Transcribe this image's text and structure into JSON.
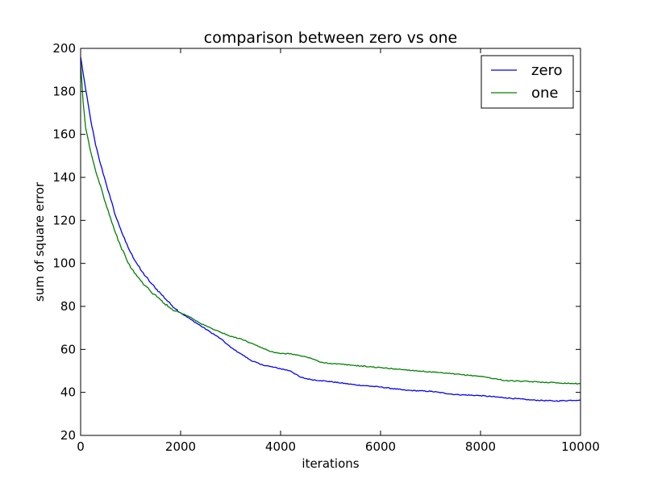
{
  "chart_data": {
    "type": "line",
    "title": "comparison between zero vs one",
    "xlabel": "iterations",
    "ylabel": "sum of square error",
    "xlim": [
      0,
      10000
    ],
    "ylim": [
      20,
      200
    ],
    "xticks": [
      0,
      2000,
      4000,
      6000,
      8000,
      10000
    ],
    "yticks": [
      20,
      40,
      60,
      80,
      100,
      120,
      140,
      160,
      180,
      200
    ],
    "grid": false,
    "legend_position": "top-right",
    "series": [
      {
        "name": "zero",
        "color": "#0000ff",
        "x": [
          0,
          100,
          200,
          300,
          400,
          500,
          600,
          700,
          800,
          900,
          1000,
          1200,
          1400,
          1600,
          1800,
          2000,
          2200,
          2400,
          2600,
          2800,
          3000,
          3200,
          3400,
          3600,
          3800,
          4000,
          4200,
          4400,
          4600,
          4800,
          5000,
          5500,
          6000,
          6500,
          7000,
          7500,
          8000,
          8500,
          9000,
          9500,
          10000
        ],
        "values": [
          196,
          181,
          167,
          155,
          146,
          138,
          130,
          122,
          116,
          110,
          105,
          97,
          91,
          86,
          81,
          77,
          74,
          71,
          68,
          65,
          61,
          58,
          55,
          53,
          52,
          51,
          50,
          47,
          46,
          45.5,
          45,
          43.5,
          42.5,
          41,
          40.5,
          39,
          38.5,
          37.5,
          36.5,
          36,
          36.5
        ]
      },
      {
        "name": "one",
        "color": "#008000",
        "x": [
          0,
          50,
          100,
          200,
          300,
          400,
          500,
          600,
          700,
          800,
          900,
          1000,
          1200,
          1400,
          1600,
          1800,
          2000,
          2200,
          2400,
          2600,
          2800,
          3000,
          3200,
          3400,
          3600,
          3800,
          4000,
          4200,
          4400,
          4600,
          4800,
          5000,
          5500,
          6000,
          6500,
          7000,
          7500,
          8000,
          8500,
          9000,
          9500,
          10000
        ],
        "values": [
          193,
          175,
          163,
          152,
          143,
          136,
          128,
          121,
          114,
          108,
          103,
          98,
          92,
          87,
          83,
          79,
          77,
          75,
          72,
          70,
          68,
          66,
          65,
          63,
          61,
          59,
          58,
          58,
          57,
          56,
          54,
          53.5,
          52.5,
          51.5,
          50.5,
          49.5,
          48.5,
          47.5,
          45.5,
          45,
          44.5,
          44
        ]
      }
    ]
  }
}
